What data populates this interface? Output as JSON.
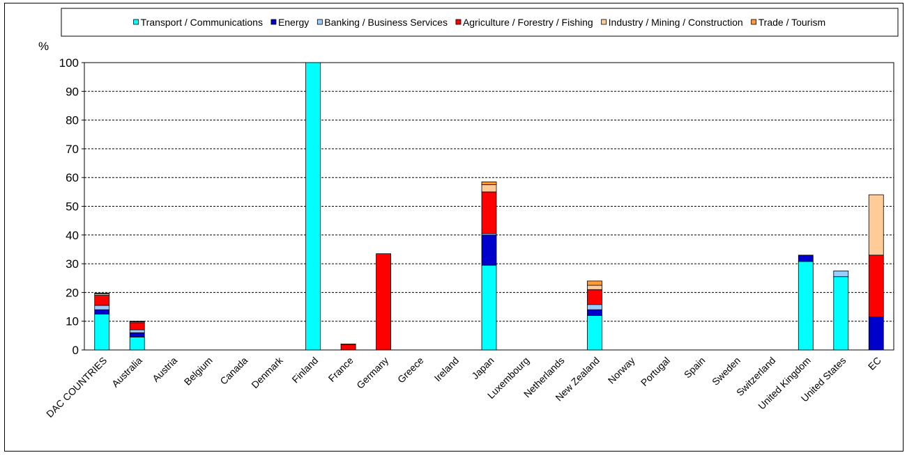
{
  "chart_data": {
    "type": "bar",
    "stacked": true,
    "ylabel": "%",
    "ylim": [
      0,
      100
    ],
    "yticks": [
      0,
      10,
      20,
      30,
      40,
      50,
      60,
      70,
      80,
      90,
      100
    ],
    "grid": "dashed horizontal",
    "legend_position": "top",
    "categories": [
      "DAC COUNTRIES",
      "Australia",
      "Austria",
      "Belgium",
      "Canada",
      "Denmark",
      "Finland",
      "France",
      "Germany",
      "Greece",
      "Ireland",
      "Japan",
      "Luxembourg",
      "Netherlands",
      "New Zealand",
      "Norway",
      "Portugal",
      "Spain",
      "Sweden",
      "Switzerland",
      "United Kingdom",
      "United States",
      "EC"
    ],
    "series": [
      {
        "name": "Transport / Communications",
        "color": "#00FFFF",
        "values": [
          12.5,
          4.5,
          0,
          0,
          0,
          0,
          100,
          0,
          0,
          0,
          0,
          29.5,
          0,
          0,
          12.0,
          0,
          0,
          0,
          0,
          0,
          30.8,
          25.5,
          0
        ]
      },
      {
        "name": "Energy",
        "color": "#0000CC",
        "values": [
          1.5,
          1.5,
          0,
          0,
          0,
          0,
          0,
          0,
          0,
          0,
          0,
          10.5,
          0,
          0,
          2.0,
          0,
          0,
          0,
          0,
          0,
          2.2,
          0,
          11.5
        ]
      },
      {
        "name": "Banking / Business Services",
        "color": "#99CCFF",
        "values": [
          1.5,
          1.0,
          0,
          0,
          0,
          0,
          0,
          0,
          0,
          0,
          0,
          0.5,
          0,
          0,
          1.8,
          0,
          0,
          0,
          0,
          0,
          0,
          2.0,
          0
        ]
      },
      {
        "name": "Agriculture / Forestry / Fishing",
        "color": "#FF0000",
        "values": [
          3.5,
          2.5,
          0,
          0,
          0,
          0,
          0,
          1.8,
          33.5,
          0,
          0,
          14.5,
          0,
          0,
          5.2,
          0,
          0,
          0,
          0,
          0,
          0,
          0,
          21.5
        ]
      },
      {
        "name": "Industry / Mining / Construction",
        "color": "#FFCC99",
        "values": [
          0.5,
          0.3,
          0,
          0,
          0,
          0,
          0,
          0,
          0,
          0,
          0,
          2.5,
          0,
          0,
          1.5,
          0,
          0,
          0,
          0,
          0,
          0,
          0,
          21.0
        ]
      },
      {
        "name": "Trade / Tourism",
        "color": "#FF9933",
        "values": [
          0.3,
          0.2,
          0,
          0,
          0,
          0,
          0,
          0.3,
          0,
          0,
          0,
          1.0,
          0,
          0,
          1.5,
          0,
          0,
          0,
          0,
          0,
          0,
          0,
          0
        ]
      }
    ]
  }
}
